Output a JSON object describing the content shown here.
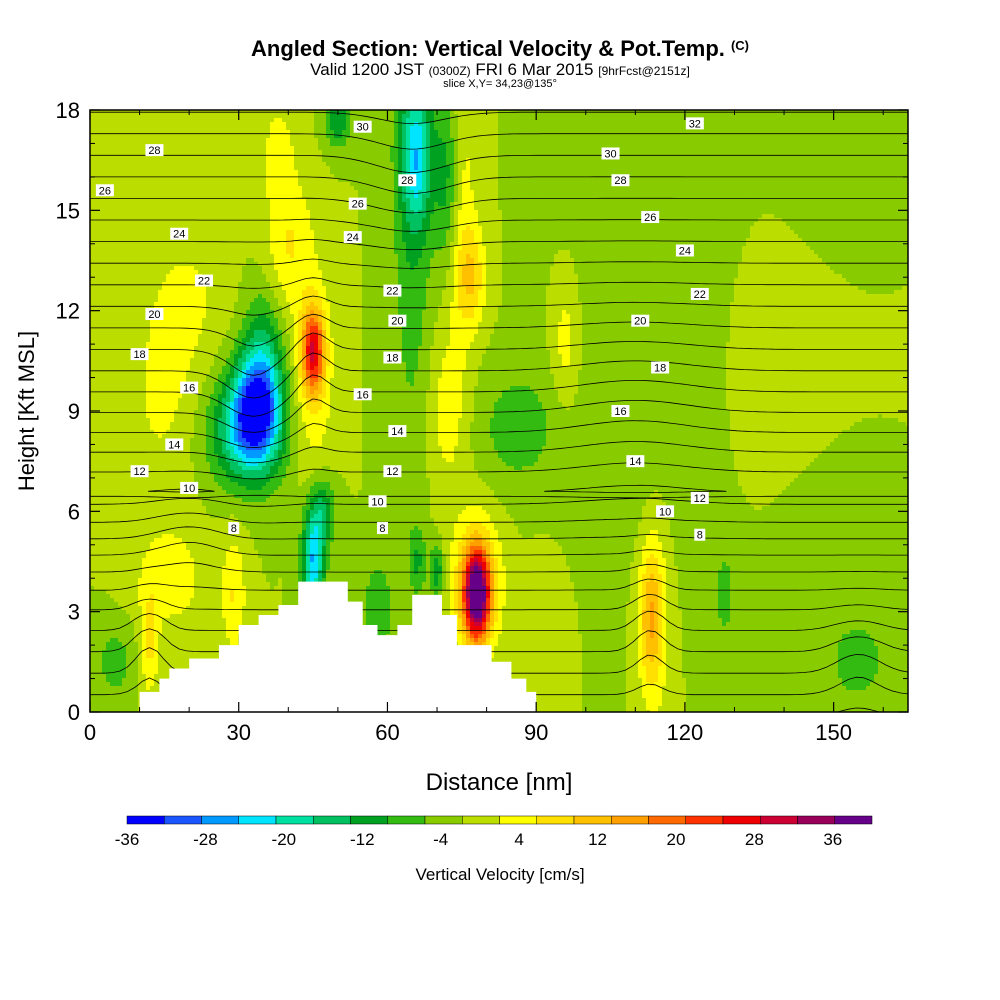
{
  "chart_data": {
    "type": "heatmap",
    "title": "Angled Section: Vertical Velocity & Pot.Temp.",
    "title_unit": "(C)",
    "subtitle_parts": [
      "Valid 1200 JST",
      "(0300Z)",
      "FRI 6 Mar 2015",
      "[9hrFcst@2151z]"
    ],
    "slice_label": "slice X,Y= 34,23@135°",
    "xlabel": "Distance [nm]",
    "ylabel": "Height [Kft MSL]",
    "xlim": [
      0,
      165
    ],
    "ylim": [
      0,
      18
    ],
    "xticks": [
      "0",
      "30",
      "60",
      "90",
      "120",
      "150"
    ],
    "xtick_values": [
      0,
      30,
      60,
      90,
      120,
      150
    ],
    "yticks": [
      "0",
      "3",
      "6",
      "9",
      "12",
      "15",
      "18"
    ],
    "ytick_values": [
      0,
      3,
      6,
      9,
      12,
      15,
      18
    ],
    "colorbar": {
      "label": "Vertical Velocity [cm/s]",
      "min": -36,
      "max": 40,
      "step": 4,
      "tick_labels": [
        "-36",
        "-28",
        "-20",
        "-12",
        "-4",
        "4",
        "12",
        "20",
        "28",
        "36"
      ],
      "tick_values": [
        -36,
        -28,
        -20,
        -12,
        -4,
        4,
        12,
        20,
        28,
        36
      ],
      "colors": [
        "#0000ff",
        "#1a55ff",
        "#0099ff",
        "#00e5ff",
        "#00e0a0",
        "#00c060",
        "#00a020",
        "#33bb11",
        "#88cc00",
        "#bbdd00",
        "#ffff00",
        "#ffe000",
        "#ffc000",
        "#ff9f00",
        "#ff6a00",
        "#ff3300",
        "#ee0000",
        "#cc0033",
        "#99005a",
        "#660088"
      ]
    },
    "background_value": 0,
    "velocity_cells": [
      {
        "x": 33,
        "y": 9.0,
        "sx": 5,
        "sy": 1.6,
        "v": -24
      },
      {
        "x": 31,
        "y": 8.3,
        "sx": 8,
        "sy": 1.6,
        "v": -14
      },
      {
        "x": 35,
        "y": 10.3,
        "sx": 4,
        "sy": 2.2,
        "v": -14
      },
      {
        "x": 45,
        "y": 4.5,
        "sx": 2.2,
        "sy": 1.5,
        "v": -24
      },
      {
        "x": 47,
        "y": 6.0,
        "sx": 2.5,
        "sy": 1.0,
        "v": -12
      },
      {
        "x": 45,
        "y": 10.8,
        "sx": 2.2,
        "sy": 1.2,
        "v": 26
      },
      {
        "x": 45,
        "y": 10.0,
        "sx": 4,
        "sy": 3,
        "v": 8
      },
      {
        "x": 40,
        "y": 14.0,
        "sx": 5,
        "sy": 2.2,
        "v": 8
      },
      {
        "x": 38,
        "y": 16.8,
        "sx": 3,
        "sy": 1.4,
        "v": 6
      },
      {
        "x": 78,
        "y": 3.5,
        "sx": 2.5,
        "sy": 1.3,
        "v": 40
      },
      {
        "x": 78,
        "y": 3.8,
        "sx": 5,
        "sy": 2.0,
        "v": 14
      },
      {
        "x": 113,
        "y": 2.8,
        "sx": 2.5,
        "sy": 2.0,
        "v": 12
      },
      {
        "x": 114,
        "y": 3.0,
        "sx": 3,
        "sy": 3.5,
        "v": 6
      },
      {
        "x": 16,
        "y": 4.0,
        "sx": 7,
        "sy": 1.5,
        "v": 7
      },
      {
        "x": 12,
        "y": 2.0,
        "sx": 1.8,
        "sy": 1.5,
        "v": 9
      },
      {
        "x": 29,
        "y": 3.5,
        "sx": 2.5,
        "sy": 1.8,
        "v": 8
      },
      {
        "x": 65,
        "y": 18.0,
        "sx": 4,
        "sy": 9.5,
        "v": -9
      },
      {
        "x": 72,
        "y": 16.0,
        "sx": 2.5,
        "sy": 2.5,
        "v": -10
      },
      {
        "x": 66,
        "y": 16.5,
        "sx": 3,
        "sy": 2.0,
        "v": -16
      },
      {
        "x": 50,
        "y": 17.7,
        "sx": 2.5,
        "sy": 0.8,
        "v": -12
      },
      {
        "x": 75,
        "y": 15.0,
        "sx": 3,
        "sy": 4.5,
        "v": 6
      },
      {
        "x": 77,
        "y": 13.0,
        "sx": 3,
        "sy": 1.5,
        "v": 10
      },
      {
        "x": 72,
        "y": 9.0,
        "sx": 4,
        "sy": 2.5,
        "v": 6
      },
      {
        "x": 70,
        "y": 4.2,
        "sx": 1.3,
        "sy": 0.8,
        "v": -12
      },
      {
        "x": 66,
        "y": 4.5,
        "sx": 1.8,
        "sy": 1.0,
        "v": -8
      },
      {
        "x": 86,
        "y": 8.5,
        "sx": 8,
        "sy": 1.8,
        "v": -6
      },
      {
        "x": 110,
        "y": 10.0,
        "sx": 15,
        "sy": 5.0,
        "v": -4
      },
      {
        "x": 148,
        "y": 8.0,
        "sx": 10,
        "sy": 6.0,
        "v": -2
      },
      {
        "x": 20,
        "y": 12.5,
        "sx": 8,
        "sy": 2.0,
        "v": 4
      },
      {
        "x": 15,
        "y": 9.5,
        "sx": 8,
        "sy": 3.0,
        "v": 5
      },
      {
        "x": 143,
        "y": 10.0,
        "sx": 12,
        "sy": 3.0,
        "v": 4
      },
      {
        "x": 96,
        "y": 11.0,
        "sx": 3,
        "sy": 2.0,
        "v": 7
      },
      {
        "x": 92,
        "y": 2.5,
        "sx": 4,
        "sy": 2.0,
        "v": 4
      },
      {
        "x": 5,
        "y": 1.5,
        "sx": 4,
        "sy": 1.2,
        "v": -6
      },
      {
        "x": 155,
        "y": 1.5,
        "sx": 6,
        "sy": 1.3,
        "v": -6
      },
      {
        "x": 58,
        "y": 3.0,
        "sx": 3,
        "sy": 1.5,
        "v": -8
      },
      {
        "x": 128,
        "y": 3.5,
        "sx": 2,
        "sy": 1.5,
        "v": -6
      }
    ],
    "terrain": [
      [
        10,
        0
      ],
      [
        10,
        0.6
      ],
      [
        14,
        0.6
      ],
      [
        14,
        1.0
      ],
      [
        16,
        1.0
      ],
      [
        16,
        1.3
      ],
      [
        20,
        1.3
      ],
      [
        20,
        1.6
      ],
      [
        26,
        1.6
      ],
      [
        26,
        2.0
      ],
      [
        30,
        2.0
      ],
      [
        30,
        2.6
      ],
      [
        34,
        2.6
      ],
      [
        34,
        2.9
      ],
      [
        38,
        2.9
      ],
      [
        38,
        3.2
      ],
      [
        42,
        3.2
      ],
      [
        42,
        3.9
      ],
      [
        52,
        3.9
      ],
      [
        52,
        3.3
      ],
      [
        55,
        3.3
      ],
      [
        55,
        2.6
      ],
      [
        58,
        2.6
      ],
      [
        58,
        2.3
      ],
      [
        62,
        2.3
      ],
      [
        62,
        2.6
      ],
      [
        65,
        2.6
      ],
      [
        65,
        3.5
      ],
      [
        71,
        3.5
      ],
      [
        71,
        2.9
      ],
      [
        74,
        2.9
      ],
      [
        74,
        2.0
      ],
      [
        81,
        2.0
      ],
      [
        81,
        1.5
      ],
      [
        85,
        1.5
      ],
      [
        85,
        1.0
      ],
      [
        88,
        1.0
      ],
      [
        88,
        0.6
      ],
      [
        90,
        0.6
      ],
      [
        90,
        0
      ]
    ],
    "isentropes": [
      2,
      3,
      4,
      5,
      6,
      7,
      8,
      9,
      10,
      11,
      12,
      13,
      14,
      15,
      16,
      17,
      18,
      19,
      20,
      21,
      22,
      23,
      24,
      25,
      26,
      27,
      28,
      29,
      30,
      31,
      32,
      33
    ],
    "contour_labels": [
      {
        "text": "8",
        "x": 29,
        "y": 5.5
      },
      {
        "text": "10",
        "x": 20,
        "y": 6.7
      },
      {
        "text": "12",
        "x": 10,
        "y": 7.2
      },
      {
        "text": "14",
        "x": 17,
        "y": 8.0
      },
      {
        "text": "16",
        "x": 20,
        "y": 9.7
      },
      {
        "text": "18",
        "x": 10,
        "y": 10.7
      },
      {
        "text": "20",
        "x": 13,
        "y": 11.9
      },
      {
        "text": "22",
        "x": 23,
        "y": 12.9
      },
      {
        "text": "24",
        "x": 18,
        "y": 14.3
      },
      {
        "text": "26",
        "x": 3,
        "y": 15.6
      },
      {
        "text": "28",
        "x": 13,
        "y": 16.8
      },
      {
        "text": "30",
        "x": 55,
        "y": 17.5
      },
      {
        "text": "26",
        "x": 54,
        "y": 15.2
      },
      {
        "text": "24",
        "x": 53,
        "y": 14.2
      },
      {
        "text": "28",
        "x": 64,
        "y": 15.9
      },
      {
        "text": "22",
        "x": 61,
        "y": 12.6
      },
      {
        "text": "20",
        "x": 62,
        "y": 11.7
      },
      {
        "text": "18",
        "x": 61,
        "y": 10.6
      },
      {
        "text": "16",
        "x": 55,
        "y": 9.5
      },
      {
        "text": "14",
        "x": 62,
        "y": 8.4
      },
      {
        "text": "12",
        "x": 61,
        "y": 7.2
      },
      {
        "text": "10",
        "x": 58,
        "y": 6.3
      },
      {
        "text": "8",
        "x": 59,
        "y": 5.5
      },
      {
        "text": "32",
        "x": 122,
        "y": 17.6
      },
      {
        "text": "30",
        "x": 105,
        "y": 16.7
      },
      {
        "text": "28",
        "x": 107,
        "y": 15.9
      },
      {
        "text": "26",
        "x": 113,
        "y": 14.8
      },
      {
        "text": "24",
        "x": 120,
        "y": 13.8
      },
      {
        "text": "22",
        "x": 123,
        "y": 12.5
      },
      {
        "text": "20",
        "x": 111,
        "y": 11.7
      },
      {
        "text": "18",
        "x": 115,
        "y": 10.3
      },
      {
        "text": "16",
        "x": 107,
        "y": 9.0
      },
      {
        "text": "14",
        "x": 110,
        "y": 7.5
      },
      {
        "text": "12",
        "x": 123,
        "y": 6.4
      },
      {
        "text": "10",
        "x": 116,
        "y": 6.0
      },
      {
        "text": "8",
        "x": 123,
        "y": 5.3
      }
    ]
  }
}
